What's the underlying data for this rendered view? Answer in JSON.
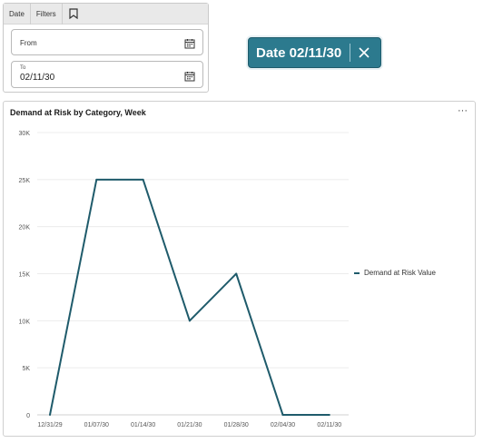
{
  "filters": {
    "tabs": [
      "Date",
      "Filters"
    ],
    "from": {
      "label": "From",
      "value": ""
    },
    "to": {
      "label": "To",
      "value": "02/11/30"
    }
  },
  "chip": {
    "label": "Date 02/11/30",
    "color": "#2c7a8e"
  },
  "chart": {
    "more_label": "···"
  },
  "chart_data": {
    "type": "line",
    "title": "Demand at Risk by Category, Week",
    "categories": [
      "12/31/29",
      "01/07/30",
      "01/14/30",
      "01/21/30",
      "01/28/30",
      "02/04/30",
      "02/11/30"
    ],
    "series": [
      {
        "name": "Demand at Risk Value",
        "values": [
          0,
          25000,
          25000,
          10000,
          15000,
          0,
          0
        ],
        "color": "#1f5b6b"
      }
    ],
    "y_ticks": [
      "0",
      "5K",
      "10K",
      "15K",
      "20K",
      "25K",
      "30K"
    ],
    "ylim": [
      0,
      30000
    ],
    "grid": true,
    "legend": "right"
  }
}
